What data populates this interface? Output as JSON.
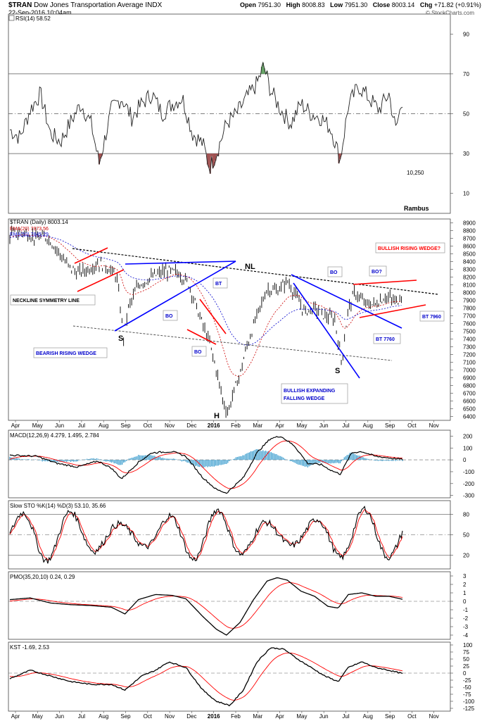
{
  "header": {
    "symbol": "$TRAN",
    "name": "Dow Jones Transportation Average",
    "exchange": "INDX",
    "date": "22-Sep-2016 10:04am",
    "open_label": "Open",
    "open": "7951.30",
    "high_label": "High",
    "high": "8008.83",
    "low_label": "Low",
    "low": "7951.30",
    "close_label": "Close",
    "close": "8003.14",
    "chg_label": "Chg",
    "chg": "+71.82 (+0.91%)",
    "brand": "© StockCharts.com",
    "author": "Rambus"
  },
  "colors": {
    "price": "#000000",
    "ema20": "#cc0000",
    "ema50": "#0000cc",
    "trend_red": "#ff0000",
    "trend_blue": "#0000ff",
    "signal": "#ff0000",
    "histogram": "#3399cc",
    "rsi_fill_red": "#a05050",
    "rsi_fill_green": "#60a060",
    "note_blue": "#0000cc",
    "note_red": "#ff0000"
  },
  "chart_data": [
    {
      "type": "line",
      "panel": "rsi",
      "legend": "RSI(14) 58.52",
      "y_ticks": [
        "90",
        "70",
        "50",
        "30",
        "10"
      ],
      "ylim": [
        0,
        100
      ],
      "reference_lines": [
        70,
        50,
        30
      ],
      "points_approx": [
        [
          0,
          42
        ],
        [
          15,
          38
        ],
        [
          30,
          52
        ],
        [
          45,
          60
        ],
        [
          60,
          40
        ],
        [
          75,
          36
        ],
        [
          90,
          46
        ],
        [
          105,
          55
        ],
        [
          120,
          45
        ],
        [
          132,
          25
        ],
        [
          150,
          52
        ],
        [
          165,
          58
        ],
        [
          180,
          48
        ],
        [
          195,
          55
        ],
        [
          210,
          60
        ],
        [
          225,
          50
        ],
        [
          240,
          55
        ],
        [
          255,
          58
        ],
        [
          270,
          40
        ],
        [
          285,
          35
        ],
        [
          295,
          23
        ],
        [
          305,
          30
        ],
        [
          320,
          45
        ],
        [
          335,
          50
        ],
        [
          350,
          58
        ],
        [
          365,
          65
        ],
        [
          375,
          74
        ],
        [
          385,
          62
        ],
        [
          400,
          52
        ],
        [
          415,
          45
        ],
        [
          430,
          55
        ],
        [
          445,
          50
        ],
        [
          460,
          48
        ],
        [
          475,
          42
        ],
        [
          488,
          27
        ],
        [
          500,
          54
        ],
        [
          515,
          64
        ],
        [
          530,
          58
        ],
        [
          545,
          52
        ],
        [
          560,
          60
        ],
        [
          570,
          42
        ],
        [
          580,
          57
        ]
      ],
      "annotation": "10,250"
    },
    {
      "type": "line",
      "panel": "price",
      "title": "$TRAN (Daily) 8003.14",
      "legend": [
        "EMA(20) 7873.56",
        "EMA(50) 7845.29"
      ],
      "y_ticks": [
        "8900",
        "8800",
        "8700",
        "8600",
        "8500",
        "8400",
        "8300",
        "8200",
        "8100",
        "8000",
        "7900",
        "7800",
        "7700",
        "7600",
        "7500",
        "7400",
        "7300",
        "7200",
        "7100",
        "7000",
        "6900",
        "6800",
        "6700",
        "6600",
        "6500",
        "6400"
      ],
      "ylim": [
        6350,
        8950
      ],
      "x_ticks": [
        "Apr",
        "May",
        "Jun",
        "Jul",
        "Aug",
        "Sep",
        "Oct",
        "Nov",
        "Dec",
        "2016",
        "Feb",
        "Mar",
        "Apr",
        "May",
        "Jun",
        "Jul",
        "Aug",
        "Sep",
        "Oct",
        "Nov"
      ],
      "close_approx": [
        [
          0,
          8750
        ],
        [
          20,
          8780
        ],
        [
          40,
          8700
        ],
        [
          55,
          8720
        ],
        [
          70,
          8550
        ],
        [
          85,
          8350
        ],
        [
          100,
          8250
        ],
        [
          115,
          8300
        ],
        [
          130,
          8380
        ],
        [
          145,
          8320
        ],
        [
          158,
          8200
        ],
        [
          168,
          7420
        ],
        [
          175,
          7800
        ],
        [
          190,
          8100
        ],
        [
          210,
          8200
        ],
        [
          230,
          8280
        ],
        [
          250,
          8250
        ],
        [
          265,
          8100
        ],
        [
          280,
          7700
        ],
        [
          295,
          7350
        ],
        [
          305,
          7000
        ],
        [
          315,
          6600
        ],
        [
          322,
          6450
        ],
        [
          330,
          6700
        ],
        [
          340,
          6950
        ],
        [
          350,
          7300
        ],
        [
          365,
          7700
        ],
        [
          380,
          8050
        ],
        [
          395,
          8020
        ],
        [
          410,
          8150
        ],
        [
          420,
          8000
        ],
        [
          435,
          7750
        ],
        [
          450,
          7800
        ],
        [
          465,
          7700
        ],
        [
          480,
          7650
        ],
        [
          490,
          7100
        ],
        [
          500,
          7800
        ],
        [
          510,
          8000
        ],
        [
          525,
          7850
        ],
        [
          540,
          7850
        ],
        [
          555,
          7950
        ],
        [
          565,
          7900
        ],
        [
          572,
          7880
        ],
        [
          580,
          8003
        ]
      ],
      "annotations": [
        "NL",
        "S",
        "H",
        "S",
        "BO",
        "BT",
        "BO",
        "BO",
        "BT 7760",
        "BO?",
        "BT 7960",
        "NECKLINE SYMMETRY LINE",
        "BEARISH RISING WEDGE",
        "BULLISH EXPANDING FALLING WEDGE",
        "BULLISH RISING WEDGE?"
      ],
      "label_texts": {
        "nl": "NL",
        "s_left": "S",
        "head": "H",
        "s_right": "S",
        "bo1": "BO",
        "bt1": "BT",
        "bo2": "BO",
        "bo3": "BO",
        "bt2": "BT 7760",
        "bo4": "BO?",
        "bt3": "BT 7960",
        "neckline_sym_1": "NECKLINE SYMMETRY LINE",
        "bearish_wedge": "BEARISH RISING WEDGE",
        "bullish_exp_1": "BULLISH EXPANDING",
        "bullish_exp_2": "FALLING WEDGE",
        "bullish_rising": "BULLISH RISING WEDGE?"
      }
    },
    {
      "type": "line",
      "panel": "macd",
      "legend": "MACD(12,26,9) 4.279, 1.495, 2.784",
      "y_ticks": [
        "200",
        "100",
        "0",
        "-100",
        "-200",
        "-300"
      ],
      "ylim": [
        -320,
        250
      ]
    },
    {
      "type": "line",
      "panel": "slow_sto",
      "legend": "Slow STO %K(14) %D(3) 53.10, 35.66",
      "y_ticks": [
        "80",
        "50",
        "20"
      ],
      "ylim": [
        0,
        100
      ],
      "reference_lines": [
        80,
        50,
        20
      ]
    },
    {
      "type": "line",
      "panel": "pmo",
      "legend": "PMO(35,20,10) 0.24, 0.29",
      "y_ticks": [
        "3",
        "2",
        "1",
        "0",
        "-1",
        "-2",
        "-3",
        "-4"
      ],
      "ylim": [
        -4.5,
        3.5
      ]
    },
    {
      "type": "line",
      "panel": "kst",
      "legend": "KST -1.69, 2.53",
      "y_ticks": [
        "100",
        "75",
        "50",
        "25",
        "0",
        "-25",
        "-50",
        "-75",
        "-100",
        "-125"
      ],
      "ylim": [
        -135,
        110
      ]
    }
  ],
  "x_axis": {
    "months": [
      "Apr",
      "May",
      "Jun",
      "Jul",
      "Aug",
      "Sep",
      "Oct",
      "Nov",
      "Dec",
      "2016",
      "Feb",
      "Mar",
      "Apr",
      "May",
      "Jun",
      "Jul",
      "Aug",
      "Sep",
      "Oct",
      "Nov"
    ]
  }
}
